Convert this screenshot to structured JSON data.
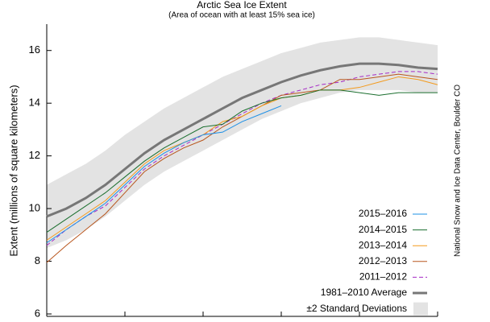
{
  "chart_data": {
    "type": "line",
    "title": "Arctic Sea Ice Extent",
    "subtitle": "(Area of ocean with at least 15% sea ice)",
    "y_label": "Extent (millions of square kilometers)",
    "source": "National Snow and Ice Data Center, Boulder CO",
    "x": [
      0,
      5,
      10,
      15,
      20,
      25,
      30,
      35,
      40,
      45,
      50,
      55,
      60,
      65,
      70,
      75,
      80,
      85,
      90,
      95,
      100
    ],
    "xlim": [
      0,
      100
    ],
    "xticks": [
      0,
      20,
      40,
      60,
      80,
      100
    ],
    "ylim": [
      6,
      17
    ],
    "yticks": [
      6,
      8,
      10,
      12,
      14,
      16
    ],
    "legend": "lower-right",
    "band": {
      "name": "±2 Standard Deviations",
      "color": "#e3e3e3",
      "upper": [
        10.9,
        11.3,
        11.7,
        12.2,
        12.8,
        13.3,
        13.8,
        14.2,
        14.6,
        15.0,
        15.3,
        15.6,
        15.9,
        16.1,
        16.3,
        16.4,
        16.5,
        16.5,
        16.4,
        16.3,
        16.2
      ],
      "lower": [
        8.5,
        8.8,
        9.2,
        9.7,
        10.3,
        10.9,
        11.4,
        11.8,
        12.2,
        12.6,
        13.0,
        13.4,
        13.7,
        14.0,
        14.2,
        14.4,
        14.5,
        14.5,
        14.5,
        14.4,
        14.4
      ]
    },
    "series": [
      {
        "name": "2015–2016",
        "color": "#1e90e6",
        "dash": false,
        "width": 1,
        "values": [
          8.7,
          9.2,
          9.7,
          10.2,
          10.9,
          11.6,
          12.1,
          12.5,
          12.8,
          12.9,
          13.3,
          13.6,
          13.9,
          null,
          null,
          null,
          null,
          null,
          null,
          null,
          null
        ]
      },
      {
        "name": "2014–2015",
        "color": "#1a6e2e",
        "dash": false,
        "width": 1,
        "values": [
          9.1,
          9.6,
          10.1,
          10.6,
          11.2,
          11.8,
          12.3,
          12.7,
          13.1,
          13.2,
          13.7,
          14.0,
          14.2,
          14.3,
          14.5,
          14.5,
          14.4,
          14.3,
          14.4,
          14.4,
          14.4
        ]
      },
      {
        "name": "2013–2014",
        "color": "#f39a1c",
        "dash": false,
        "width": 1,
        "values": [
          8.8,
          9.3,
          9.8,
          10.3,
          11.0,
          11.7,
          12.2,
          12.5,
          12.8,
          13.3,
          13.5,
          13.9,
          14.2,
          14.3,
          14.5,
          14.5,
          14.6,
          14.8,
          15.0,
          14.9,
          14.7
        ]
      },
      {
        "name": "2012–2013",
        "color": "#b8561e",
        "dash": false,
        "width": 1,
        "values": [
          7.95,
          8.6,
          9.2,
          9.8,
          10.6,
          11.4,
          11.9,
          12.3,
          12.6,
          13.1,
          13.5,
          13.9,
          14.3,
          14.4,
          14.5,
          14.9,
          14.9,
          15.0,
          15.1,
          15.0,
          14.9
        ]
      },
      {
        "name": "2011–2012",
        "color": "#a52ac6",
        "dash": true,
        "width": 1,
        "values": [
          8.6,
          9.2,
          9.7,
          10.1,
          10.8,
          11.5,
          12.0,
          12.4,
          12.8,
          13.2,
          13.6,
          14.0,
          14.3,
          14.5,
          14.7,
          14.8,
          15.0,
          15.1,
          15.2,
          15.2,
          15.1
        ]
      },
      {
        "name": "1981–2010 Average",
        "color": "#777777",
        "dash": false,
        "width": 3,
        "values": [
          9.7,
          10.0,
          10.4,
          10.9,
          11.5,
          12.1,
          12.6,
          13.0,
          13.4,
          13.8,
          14.2,
          14.5,
          14.8,
          15.05,
          15.25,
          15.4,
          15.5,
          15.5,
          15.45,
          15.35,
          15.3
        ]
      }
    ]
  }
}
